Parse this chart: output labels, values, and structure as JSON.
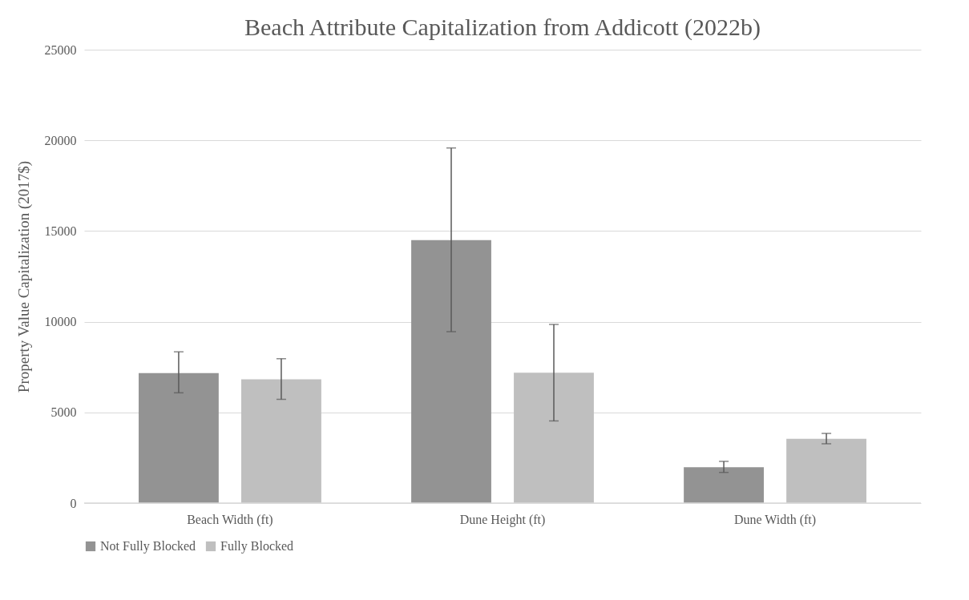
{
  "chart_data": {
    "type": "bar",
    "title": "Beach Attribute Capitalization from Addicott (2022b)",
    "ylabel": "Property Value Capitalization (2017$)",
    "categories": [
      "Beach Width (ft)",
      "Dune Height (ft)",
      "Dune Width (ft)"
    ],
    "series": [
      {
        "name": "Not Fully Blocked",
        "color": "#939393",
        "values": [
          7170,
          14500,
          1980
        ],
        "errors": [
          [
            6080,
            8340
          ],
          [
            9450,
            19580
          ],
          [
            1690,
            2300
          ]
        ]
      },
      {
        "name": "Fully Blocked",
        "color": "#bfbfbf",
        "values": [
          6820,
          7190,
          3540
        ],
        "errors": [
          [
            5720,
            7960
          ],
          [
            4530,
            9850
          ],
          [
            3270,
            3840
          ]
        ]
      }
    ],
    "ylim": [
      0,
      25000
    ],
    "yticks": [
      0,
      5000,
      10000,
      15000,
      20000,
      25000
    ],
    "grid": "y",
    "legend": "bottom"
  }
}
